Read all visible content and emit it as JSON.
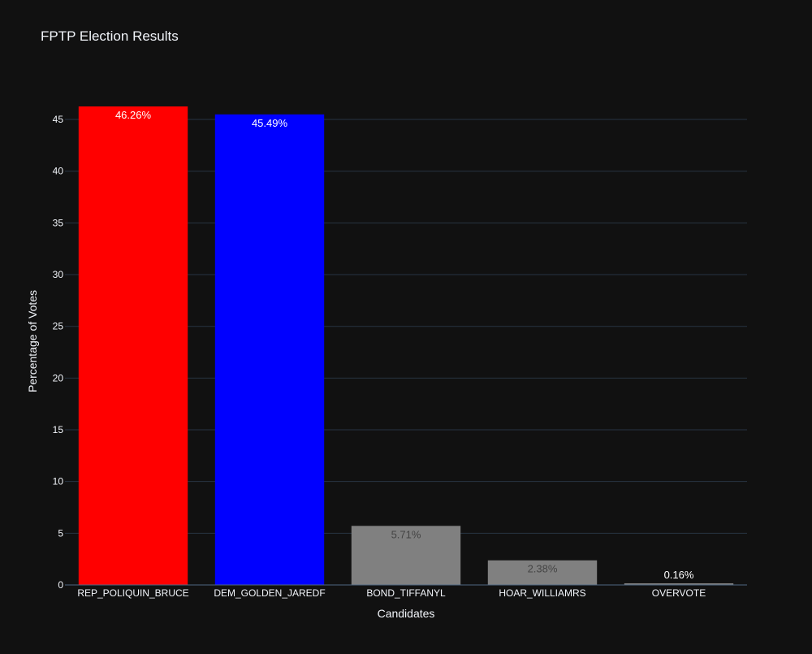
{
  "chart_data": {
    "type": "bar",
    "title": "FPTP Election Results",
    "xlabel": "Candidates",
    "ylabel": "Percentage of Votes",
    "categories": [
      "REP_POLIQUIN_BRUCE",
      "DEM_GOLDEN_JAREDF",
      "BOND_TIFFANYL",
      "HOAR_WILLIAMRS",
      "OVERVOTE"
    ],
    "values": [
      46.26,
      45.49,
      5.71,
      2.38,
      0.16
    ],
    "data_labels": [
      "46.26%",
      "45.49%",
      "5.71%",
      "2.38%",
      "0.16%"
    ],
    "colors": [
      "#ff0000",
      "#0000ff",
      "#808080",
      "#808080",
      "#808080"
    ],
    "label_colors": [
      "#ffffff",
      "#ffffff",
      "#444444",
      "#444444",
      "#ffffff"
    ],
    "ylim": [
      0,
      46.26
    ],
    "yticks": [
      0,
      5,
      10,
      15,
      20,
      25,
      30,
      35,
      40,
      45
    ],
    "grid": true,
    "background": "#111111",
    "grid_color": "#283442",
    "text_color": "#f2f5fa"
  }
}
